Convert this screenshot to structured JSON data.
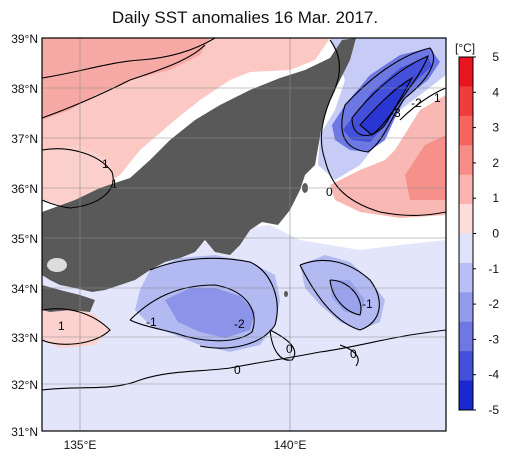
{
  "title": "Daily SST anomalies 16 Mar. 2017.",
  "map": {
    "lat_labels": [
      "39°N",
      "38°N",
      "37°N",
      "36°N",
      "35°N",
      "34°N",
      "33°N",
      "32°N",
      "31°N"
    ],
    "lon_labels": [
      "135°E",
      "140°E"
    ],
    "contour_labels": [
      "1",
      "1",
      "1",
      "0",
      "-3",
      "-2",
      "1",
      "-1",
      "-2",
      "-1",
      "0",
      "0",
      "0"
    ]
  },
  "colorbar": {
    "unit": "[°C]",
    "ticks": [
      "5",
      "4",
      "3",
      "2",
      "1",
      "0",
      "-1",
      "-2",
      "-3",
      "-4",
      "-5"
    ],
    "colors": [
      "#e8141e",
      "#f03c3c",
      "#f5645f",
      "#f88c87",
      "#fbb4b0",
      "#fddcda",
      "#dfe2fa",
      "#b9bff4",
      "#939ceb",
      "#6d78e2",
      "#4450da",
      "#1a28d0"
    ]
  }
}
